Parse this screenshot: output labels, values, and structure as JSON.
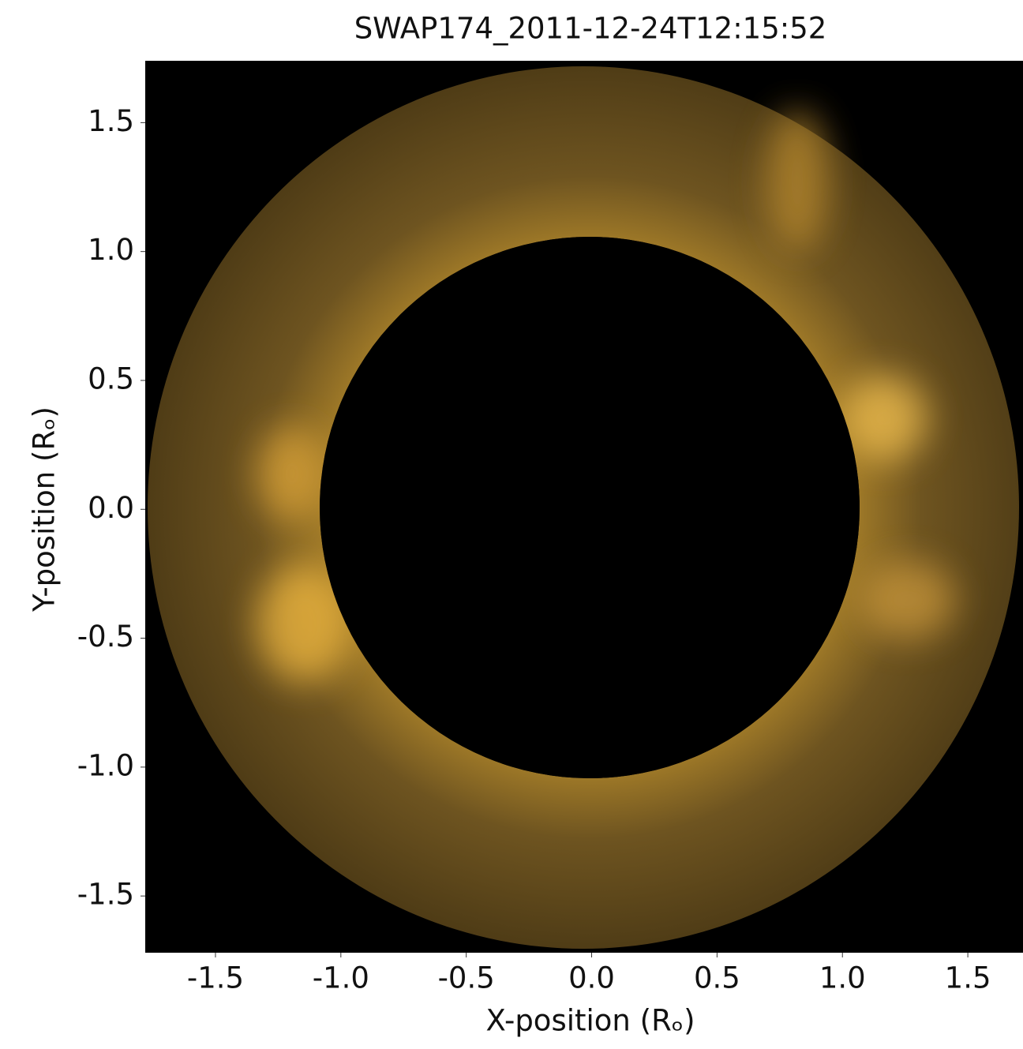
{
  "chart_data": {
    "type": "image",
    "title": "SWAP174_2011-12-24T12:15:52",
    "x_label": "X-position (Rₒ)",
    "y_label": "Y-position (Rₒ)",
    "xlim": [
      -1.78,
      1.72
    ],
    "ylim": [
      -1.72,
      1.74
    ],
    "xticks": [
      -1.5,
      {
        "value": -1,
        "label": "-1.0"
      },
      -0.5,
      {
        "value": 0,
        "label": "0.0"
      },
      0.5,
      {
        "value": 1,
        "label": "1.0"
      },
      1.5
    ],
    "yticks": [
      -1.5,
      {
        "value": -1,
        "label": "-1.0"
      },
      -0.5,
      {
        "value": 0,
        "label": "0.0"
      },
      0.5,
      {
        "value": 1,
        "label": "1.0"
      },
      1.5
    ],
    "grid": false
  }
}
